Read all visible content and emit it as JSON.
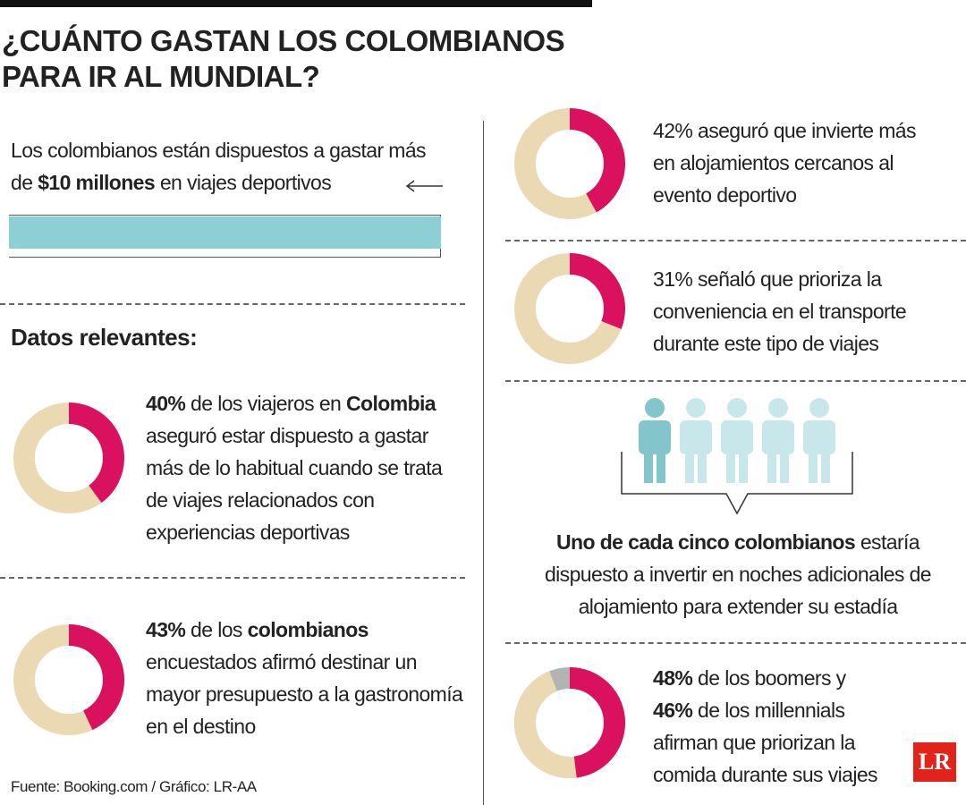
{
  "header": {
    "title": "¿CUÁNTO GASTAN LOS COLOMBIANOS PARA IR AL MUNDIAL?"
  },
  "intro": {
    "text": [
      "Los colombianos están dispuestos a gastar más de ",
      "$10 millones",
      " en viajes deportivos"
    ]
  },
  "section_title": "Datos relevantes:",
  "stats": [
    {
      "value": 40,
      "value_label": "40%",
      "text": [
        " de los viajeros en ",
        "Colombia",
        " aseguró estar dispuesto a gastar más de lo habitual cuando se trata de viajes relacionados con experiencias deportivas"
      ]
    },
    {
      "value": 43,
      "value_label": "43%",
      "text": [
        " de los ",
        "colombianos",
        " encuestados afirmó destinar un mayor presupuesto a la gastronomía en el destino"
      ]
    },
    {
      "value": 42,
      "value_label": "42%",
      "text": [
        " aseguró que invierte más en alojamientos cercanos al evento deportivo"
      ]
    },
    {
      "value": 31,
      "value_label": "31%",
      "text": [
        " señaló que prioriza la conveniencia en el transporte durante este tipo de viajes"
      ]
    }
  ],
  "people": {
    "text": [
      "Uno de cada cinco colombianos",
      " estaría dispuesto a invertir en noches adicionales de alojamiento para extender su estadía"
    ]
  },
  "generations": {
    "values": [
      48,
      46
    ],
    "value_labels": [
      "48%",
      "46%"
    ],
    "text": [
      " de los boomers y",
      " de los millennials afirman que priorizan la comida durante sus viajes"
    ]
  },
  "footer": {
    "source": "Fuente: Booking.com / Gráfico: LR-AA",
    "logo": "LR"
  }
}
